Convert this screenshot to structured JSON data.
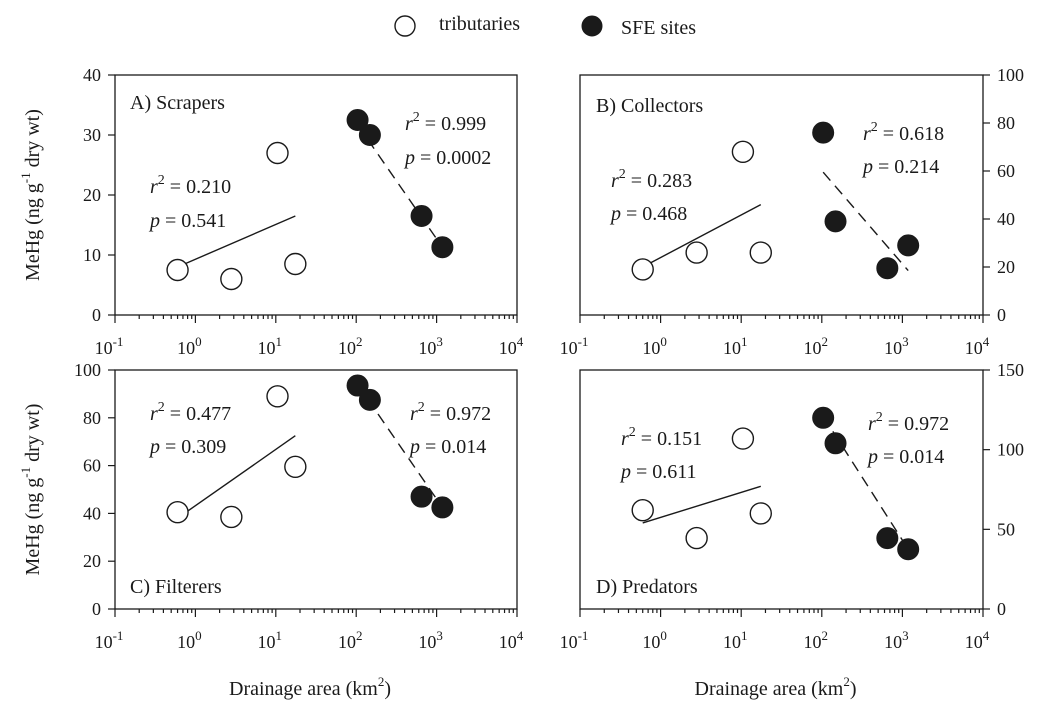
{
  "legend": {
    "tributaries": "tributaries",
    "sfe": "SFE sites"
  },
  "colors": {
    "ink": "#1a1a1a",
    "open_fill": "#ffffff"
  },
  "chart_data": [
    {
      "type": "scatter",
      "title": "A) Scrapers",
      "xlabel": "",
      "ylabel": "MeHg (ng g-1 dry wt)",
      "xscale": "log",
      "xlim": [
        0.1,
        10000
      ],
      "ylim": [
        0,
        40
      ],
      "yticks": [
        0,
        10,
        20,
        30,
        40
      ],
      "y_axis_side": "left",
      "series": [
        {
          "name": "tributaries",
          "x": [
            0.6,
            2.8,
            10.5,
            17.5
          ],
          "y": [
            7.5,
            6.0,
            27.0,
            8.5
          ]
        },
        {
          "name": "SFE sites",
          "x": [
            104,
            148,
            650,
            1180
          ],
          "y": [
            32.5,
            30.0,
            16.5,
            11.3
          ]
        }
      ],
      "fits": [
        {
          "series": "tributaries",
          "style": "solid",
          "x": [
            0.6,
            17.5
          ],
          "y": [
            8.0,
            16.5
          ],
          "r2": "0.210",
          "p": "0.541"
        },
        {
          "series": "SFE sites",
          "style": "dashed",
          "x": [
            104,
            1180
          ],
          "y": [
            31.7,
            11.3
          ],
          "r2": "0.999",
          "p": "0.0002"
        }
      ]
    },
    {
      "type": "scatter",
      "title": "B) Collectors",
      "xlabel": "",
      "ylabel": "",
      "xscale": "log",
      "xlim": [
        0.1,
        10000
      ],
      "ylim": [
        0,
        100
      ],
      "yticks": [
        0,
        20,
        40,
        60,
        80,
        100
      ],
      "y_axis_side": "right",
      "series": [
        {
          "name": "tributaries",
          "x": [
            0.6,
            2.8,
            10.5,
            17.5
          ],
          "y": [
            19.0,
            26.0,
            68.0,
            26.0
          ]
        },
        {
          "name": "SFE sites",
          "x": [
            104,
            148,
            650,
            1180
          ],
          "y": [
            76.0,
            39.0,
            19.5,
            29.0
          ]
        }
      ],
      "fits": [
        {
          "series": "tributaries",
          "style": "solid",
          "x": [
            0.6,
            17.5
          ],
          "y": [
            20.0,
            46.0
          ],
          "r2": "0.283",
          "p": "0.468"
        },
        {
          "series": "SFE sites",
          "style": "dashed",
          "x": [
            104,
            1180
          ],
          "y": [
            59.5,
            18.5
          ],
          "r2": "0.618",
          "p": "0.214"
        }
      ]
    },
    {
      "type": "scatter",
      "title": "C) Filterers",
      "xlabel": "Drainage area (km2)",
      "ylabel": "MeHg (ng g-1 dry wt)",
      "xscale": "log",
      "xlim": [
        0.1,
        10000
      ],
      "ylim": [
        0,
        100
      ],
      "yticks": [
        0,
        20,
        40,
        60,
        80,
        100
      ],
      "y_axis_side": "left",
      "series": [
        {
          "name": "tributaries",
          "x": [
            0.6,
            2.8,
            10.5,
            17.5
          ],
          "y": [
            40.5,
            38.5,
            89.0,
            59.5
          ]
        },
        {
          "name": "SFE sites",
          "x": [
            104,
            148,
            650,
            1180
          ],
          "y": [
            93.5,
            87.5,
            47.0,
            42.5
          ]
        }
      ],
      "fits": [
        {
          "series": "tributaries",
          "style": "solid",
          "x": [
            0.6,
            17.5
          ],
          "y": [
            38.0,
            72.5
          ],
          "r2": "0.477",
          "p": "0.309"
        },
        {
          "series": "SFE sites",
          "style": "dashed",
          "x": [
            104,
            1180
          ],
          "y": [
            94.0,
            42.5
          ],
          "r2": "0.972",
          "p": "0.014"
        }
      ]
    },
    {
      "type": "scatter",
      "title": "D) Predators",
      "xlabel": "Drainage area (km2)",
      "ylabel": "",
      "xscale": "log",
      "xlim": [
        0.1,
        10000
      ],
      "ylim": [
        0,
        150
      ],
      "yticks": [
        0,
        50,
        100,
        150
      ],
      "y_axis_side": "right",
      "series": [
        {
          "name": "tributaries",
          "x": [
            0.6,
            2.8,
            10.5,
            17.5
          ],
          "y": [
            62.0,
            44.5,
            107.0,
            60.0
          ]
        },
        {
          "name": "SFE sites",
          "x": [
            104,
            148,
            650,
            1180
          ],
          "y": [
            120.0,
            104.0,
            44.5,
            37.5
          ]
        }
      ],
      "fits": [
        {
          "series": "tributaries",
          "style": "solid",
          "x": [
            0.6,
            17.5
          ],
          "y": [
            54.0,
            77.0
          ],
          "r2": "0.151",
          "p": "0.611"
        },
        {
          "series": "SFE sites",
          "style": "dashed",
          "x": [
            104,
            1180
          ],
          "y": [
            121.0,
            37.5
          ],
          "r2": "0.972",
          "p": "0.014"
        }
      ]
    }
  ]
}
